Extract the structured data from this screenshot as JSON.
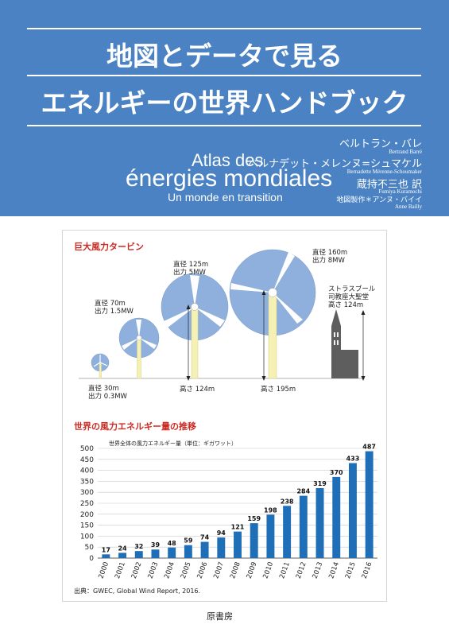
{
  "cover": {
    "title_line1": "地図とデータで見る",
    "title_line2": "エネルギーの世界ハンドブック",
    "french_title_1": "Atlas des",
    "french_title_2": "énergies mondiales",
    "french_subtitle": "Un monde en transition",
    "authors": [
      {
        "jp": "ベルトラン・バレ",
        "roman": "Bertrand Barré"
      },
      {
        "jp": "ベルナデット・メレンヌ=シュマケル",
        "roman": "Bernadette Mérenne-Schoumaker"
      },
      {
        "jp": "蔵持不三也 訳",
        "roman": "Fumiya Kuramochi"
      },
      {
        "jp": "地図製作＊アンヌ・バイイ",
        "roman": "Anne Bailly"
      }
    ],
    "publisher": "原書房"
  },
  "turbines": {
    "title": "巨大風力タービン",
    "items": [
      {
        "diameter": "直径 30m",
        "power": "出力 0.3MW",
        "diameter_m": 30
      },
      {
        "diameter": "直径 70m",
        "power": "出力 1.5MW",
        "diameter_m": 70
      },
      {
        "diameter": "直径 125m",
        "power": "出力 5MW",
        "diameter_m": 125,
        "height": "高さ 124m"
      },
      {
        "diameter": "直径 160m",
        "power": "出力 8MW",
        "diameter_m": 160,
        "height": "高さ 195m"
      }
    ],
    "cathedral": {
      "line1": "ストラスブール",
      "line2": "司教座大聖堂",
      "line3": "高さ 124m"
    },
    "colors": {
      "rotor_fill": "#8fb0dc",
      "tower": "#f5f0b4",
      "cathedral": "#5e5e5e"
    }
  },
  "chart_data": {
    "type": "bar",
    "title": "世界の風力エネルギー量の推移",
    "subtitle": "世界全体の風力エネルギー量（単位：ギガワット）",
    "categories": [
      "2000",
      "2001",
      "2002",
      "2003",
      "2004",
      "2005",
      "2006",
      "2007",
      "2008",
      "2009",
      "2010",
      "2011",
      "2012",
      "2013",
      "2014",
      "2015",
      "2016"
    ],
    "values": [
      17,
      24,
      32,
      39,
      48,
      59,
      74,
      94,
      121,
      159,
      198,
      238,
      284,
      319,
      370,
      433,
      487
    ],
    "yticks": [
      0,
      50,
      100,
      150,
      200,
      250,
      300,
      350,
      400,
      450,
      500
    ],
    "ylim": [
      0,
      500
    ],
    "bar_color": "#1f6fb8",
    "grid": true
  },
  "source": "出典：GWEC, Global Wind Report, 2016."
}
